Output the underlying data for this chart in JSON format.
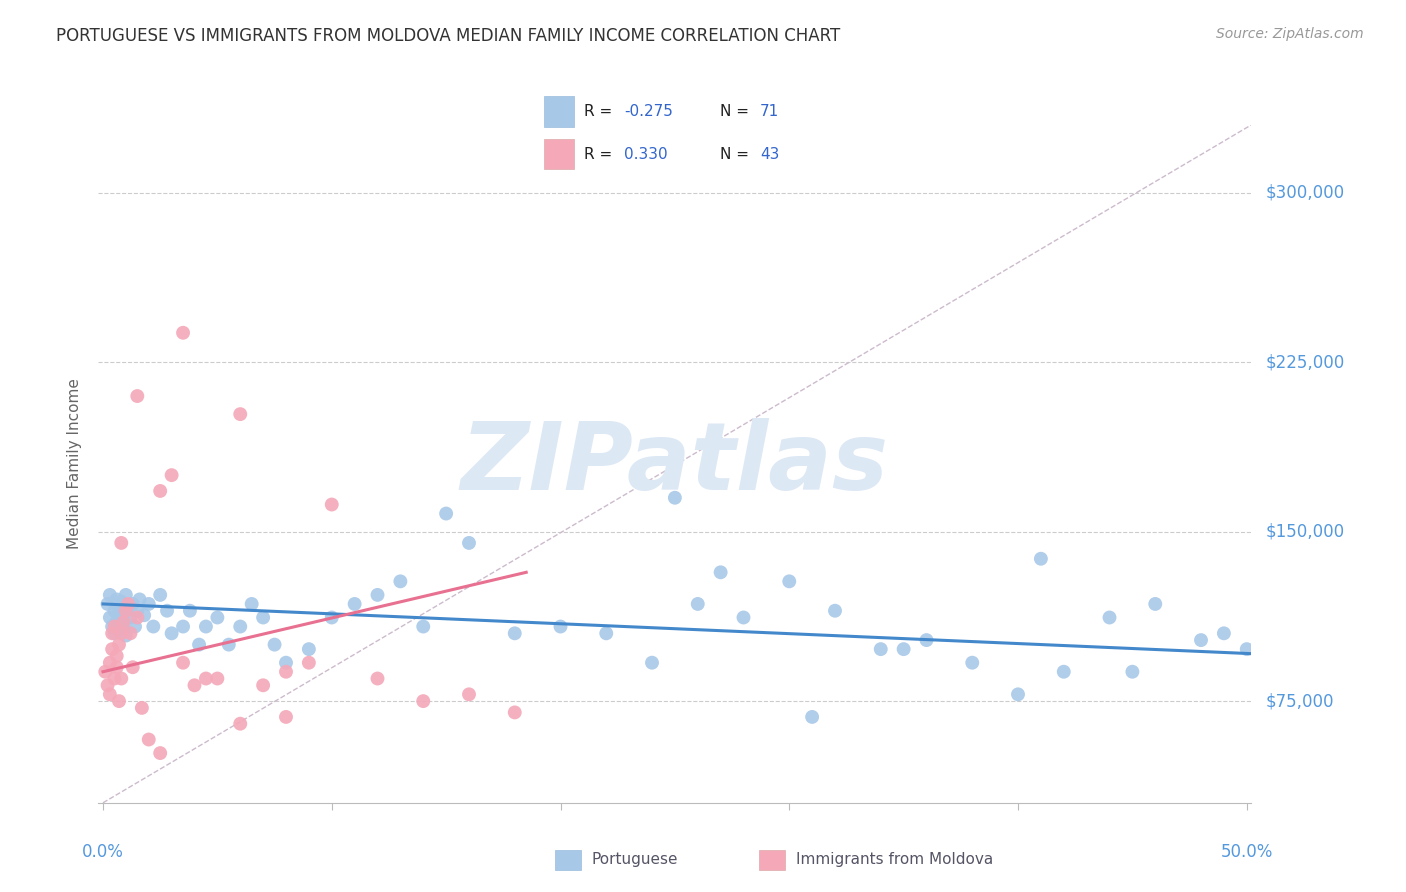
{
  "title": "PORTUGUESE VS IMMIGRANTS FROM MOLDOVA MEDIAN FAMILY INCOME CORRELATION CHART",
  "source": "Source: ZipAtlas.com",
  "ylabel": "Median Family Income",
  "yticks": [
    75000,
    150000,
    225000,
    300000
  ],
  "ytick_labels": [
    "$75,000",
    "$150,000",
    "$225,000",
    "$300,000"
  ],
  "y_min": 30000,
  "y_max": 330000,
  "x_min": -0.002,
  "x_max": 0.502,
  "blue_color": "#a8c8e8",
  "pink_color": "#f4a8b8",
  "blue_line_color": "#4488cc",
  "pink_line_color": "#e87090",
  "dashed_line_color": "#ccbbcc",
  "background_color": "#ffffff",
  "grid_color": "#cccccc",
  "axis_label_color": "#5599dd",
  "legend_R_N_color": "#3366cc",
  "title_color": "#333333",
  "source_color": "#999999",
  "ylabel_color": "#666666",
  "watermark_color": "#dde8f5",
  "bottom_label_color": "#555566",
  "blue_scatter_x": [
    0.002,
    0.003,
    0.003,
    0.004,
    0.005,
    0.005,
    0.006,
    0.006,
    0.007,
    0.007,
    0.008,
    0.008,
    0.009,
    0.009,
    0.01,
    0.01,
    0.011,
    0.012,
    0.013,
    0.014,
    0.015,
    0.016,
    0.018,
    0.02,
    0.022,
    0.025,
    0.028,
    0.03,
    0.035,
    0.038,
    0.042,
    0.045,
    0.05,
    0.055,
    0.06,
    0.065,
    0.07,
    0.075,
    0.08,
    0.09,
    0.1,
    0.11,
    0.12,
    0.13,
    0.14,
    0.15,
    0.16,
    0.18,
    0.2,
    0.22,
    0.24,
    0.26,
    0.28,
    0.3,
    0.32,
    0.34,
    0.36,
    0.38,
    0.4,
    0.42,
    0.44,
    0.46,
    0.48,
    0.5,
    0.25,
    0.27,
    0.31,
    0.35,
    0.41,
    0.45,
    0.49
  ],
  "blue_scatter_y": [
    118000,
    112000,
    122000,
    108000,
    115000,
    105000,
    110000,
    120000,
    116000,
    108000,
    113000,
    119000,
    107000,
    111000,
    122000,
    104000,
    116000,
    112000,
    118000,
    108000,
    115000,
    120000,
    113000,
    118000,
    108000,
    122000,
    115000,
    105000,
    108000,
    115000,
    100000,
    108000,
    112000,
    100000,
    108000,
    118000,
    112000,
    100000,
    92000,
    98000,
    112000,
    118000,
    122000,
    128000,
    108000,
    158000,
    145000,
    105000,
    108000,
    105000,
    92000,
    118000,
    112000,
    128000,
    115000,
    98000,
    102000,
    92000,
    78000,
    88000,
    112000,
    118000,
    102000,
    98000,
    165000,
    132000,
    68000,
    98000,
    138000,
    88000,
    105000
  ],
  "pink_scatter_x": [
    0.001,
    0.002,
    0.003,
    0.003,
    0.004,
    0.004,
    0.005,
    0.005,
    0.006,
    0.006,
    0.007,
    0.007,
    0.008,
    0.008,
    0.009,
    0.01,
    0.011,
    0.012,
    0.013,
    0.015,
    0.017,
    0.02,
    0.025,
    0.03,
    0.035,
    0.04,
    0.045,
    0.05,
    0.06,
    0.07,
    0.08,
    0.09,
    0.1,
    0.12,
    0.14,
    0.16,
    0.18,
    0.035,
    0.06,
    0.08,
    0.025,
    0.015,
    0.008
  ],
  "pink_scatter_y": [
    88000,
    82000,
    92000,
    78000,
    98000,
    105000,
    108000,
    85000,
    90000,
    95000,
    100000,
    75000,
    105000,
    85000,
    110000,
    115000,
    118000,
    105000,
    90000,
    112000,
    72000,
    58000,
    52000,
    175000,
    92000,
    82000,
    85000,
    85000,
    65000,
    82000,
    88000,
    92000,
    162000,
    85000,
    75000,
    78000,
    70000,
    238000,
    202000,
    68000,
    168000,
    210000,
    145000
  ]
}
